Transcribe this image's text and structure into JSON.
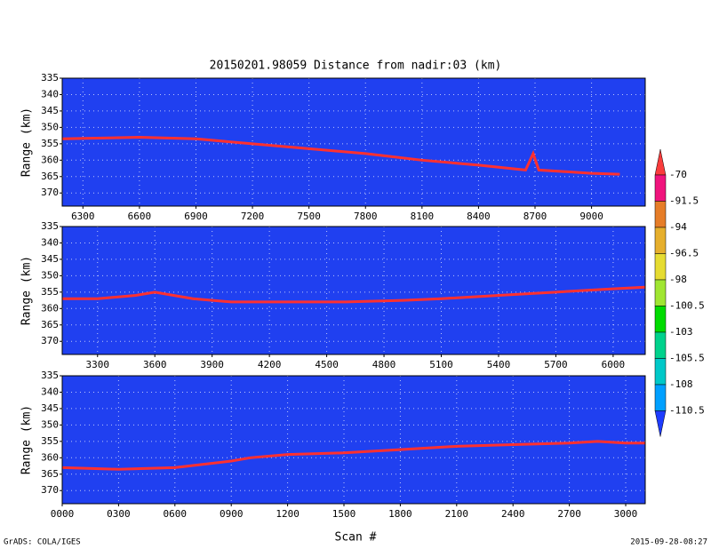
{
  "chart_data": [
    {
      "type": "line",
      "title": "20150201.98059    Distance from nadir:03 (km)",
      "y_label": "Range (km)",
      "xlim": [
        6190,
        9285
      ],
      "xticks": [
        6300,
        6600,
        6900,
        7200,
        7500,
        7800,
        8100,
        8400,
        8700,
        9000
      ],
      "ylim": [
        374,
        335
      ],
      "yticks": [
        335,
        340,
        345,
        350,
        355,
        360,
        365,
        370
      ],
      "grid": true,
      "background": "#2040f0",
      "color": "#ff3030",
      "x": [
        6190,
        6600,
        6900,
        7200,
        7500,
        7800,
        8100,
        8400,
        8650,
        8690,
        8720,
        9000,
        9150
      ],
      "values": [
        353.5,
        353,
        353.5,
        355,
        356.5,
        358,
        360,
        361.5,
        363,
        358,
        363,
        364,
        364.3
      ]
    },
    {
      "type": "line",
      "y_label": "Range (km)",
      "xlim": [
        3115,
        6168
      ],
      "xticks": [
        3300,
        3600,
        3900,
        4200,
        4500,
        4800,
        5100,
        5400,
        5700,
        6000
      ],
      "ylim": [
        374,
        335
      ],
      "yticks": [
        335,
        340,
        345,
        350,
        355,
        360,
        365,
        370
      ],
      "grid": true,
      "background": "#2040f0",
      "color": "#ff3030",
      "x": [
        3115,
        3300,
        3500,
        3600,
        3800,
        4000,
        4300,
        4600,
        4900,
        5100,
        5400,
        5700,
        6000,
        6168
      ],
      "values": [
        357,
        357,
        356,
        355,
        357,
        358,
        358,
        358,
        357.5,
        357,
        356,
        355,
        354,
        353.5
      ]
    },
    {
      "type": "line",
      "y_label": "Range (km)",
      "x_label": "Scan #",
      "xlim": [
        0,
        3104
      ],
      "xticks": [
        {
          "value": 0,
          "label": "0000"
        },
        {
          "value": 300,
          "label": "0300"
        },
        {
          "value": 600,
          "label": "0600"
        },
        {
          "value": 900,
          "label": "0900"
        },
        1200,
        1500,
        1800,
        2100,
        2400,
        2700,
        3000
      ],
      "ylim": [
        374,
        335
      ],
      "yticks": [
        335,
        340,
        345,
        350,
        355,
        360,
        365,
        370
      ],
      "grid": true,
      "background": "#2040f0",
      "color": "#ff3030",
      "x": [
        0,
        300,
        600,
        900,
        1000,
        1200,
        1500,
        1800,
        2100,
        2400,
        2700,
        2850,
        3000,
        3104
      ],
      "values": [
        363,
        363.5,
        363,
        361,
        360,
        359,
        358.5,
        357.5,
        356.5,
        356,
        355.5,
        355,
        355.5,
        355.5
      ]
    }
  ],
  "colorbar": {
    "levels": [
      -70,
      -91.5,
      -94,
      -96.5,
      -98,
      -100.5,
      -103,
      -105.5,
      -108,
      -110.5
    ],
    "colors": [
      "#fa3c3c",
      "#f0147d",
      "#e67d28",
      "#e6af2d",
      "#e6dc32",
      "#a0e632",
      "#00dc00",
      "#00d28c",
      "#00c8c8",
      "#00a0ff",
      "#1e3cff"
    ]
  },
  "footer": {
    "left": "GrADS: COLA/IGES",
    "right": "2015-09-28-08:27"
  }
}
